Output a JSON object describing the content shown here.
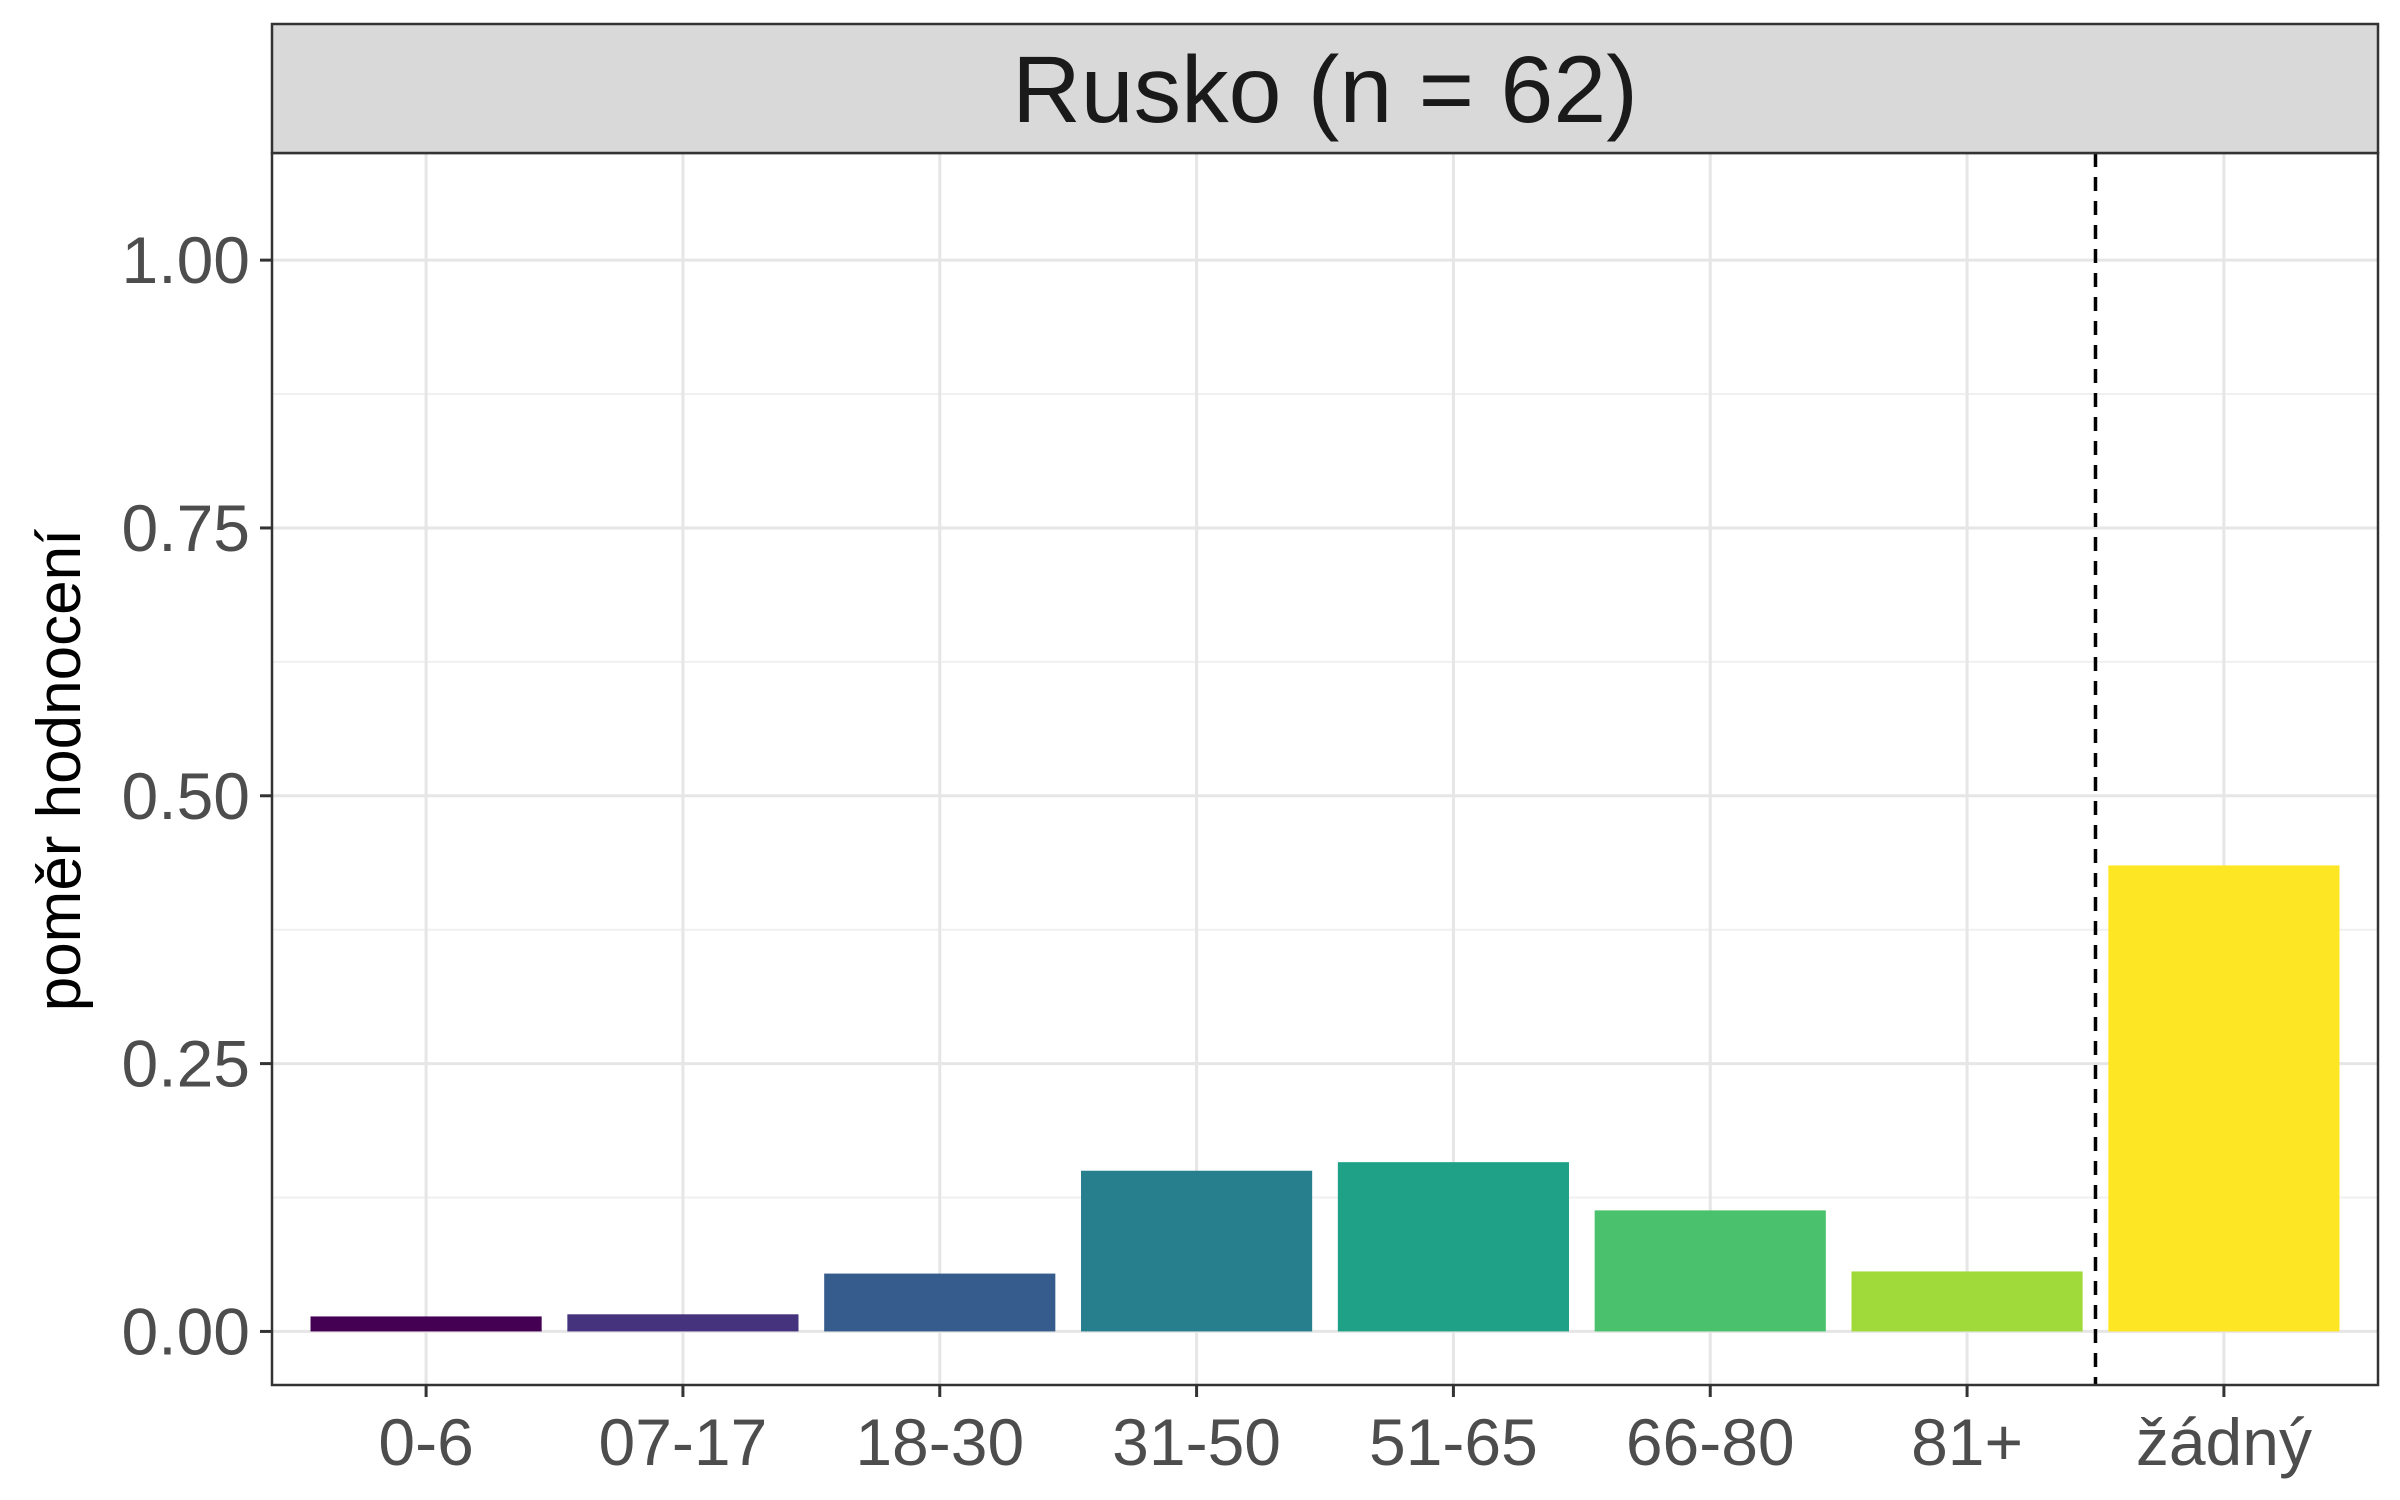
{
  "chart_data": {
    "type": "bar",
    "title": "Rusko (n = 62)",
    "xlabel": "",
    "ylabel": "poměr hodnocení",
    "ylim": [
      -0.05,
      1.1
    ],
    "y_ticks": [
      "0.00",
      "0.25",
      "0.50",
      "0.75",
      "1.00"
    ],
    "categories": [
      "0-6",
      "07-17",
      "18-30",
      "31-50",
      "51-65",
      "66-80",
      "81+",
      "žádný"
    ],
    "values": [
      0.014,
      0.016,
      0.054,
      0.15,
      0.158,
      0.113,
      0.056,
      0.435
    ],
    "colors": [
      "#440154",
      "#46337E",
      "#365C8D",
      "#277F8E",
      "#1FA187",
      "#4AC16D",
      "#9FDA3A",
      "#FDE725"
    ],
    "reference_line": {
      "style": "dashed",
      "between": [
        "81+",
        "žádný"
      ]
    },
    "grid": true,
    "legend": "none"
  }
}
